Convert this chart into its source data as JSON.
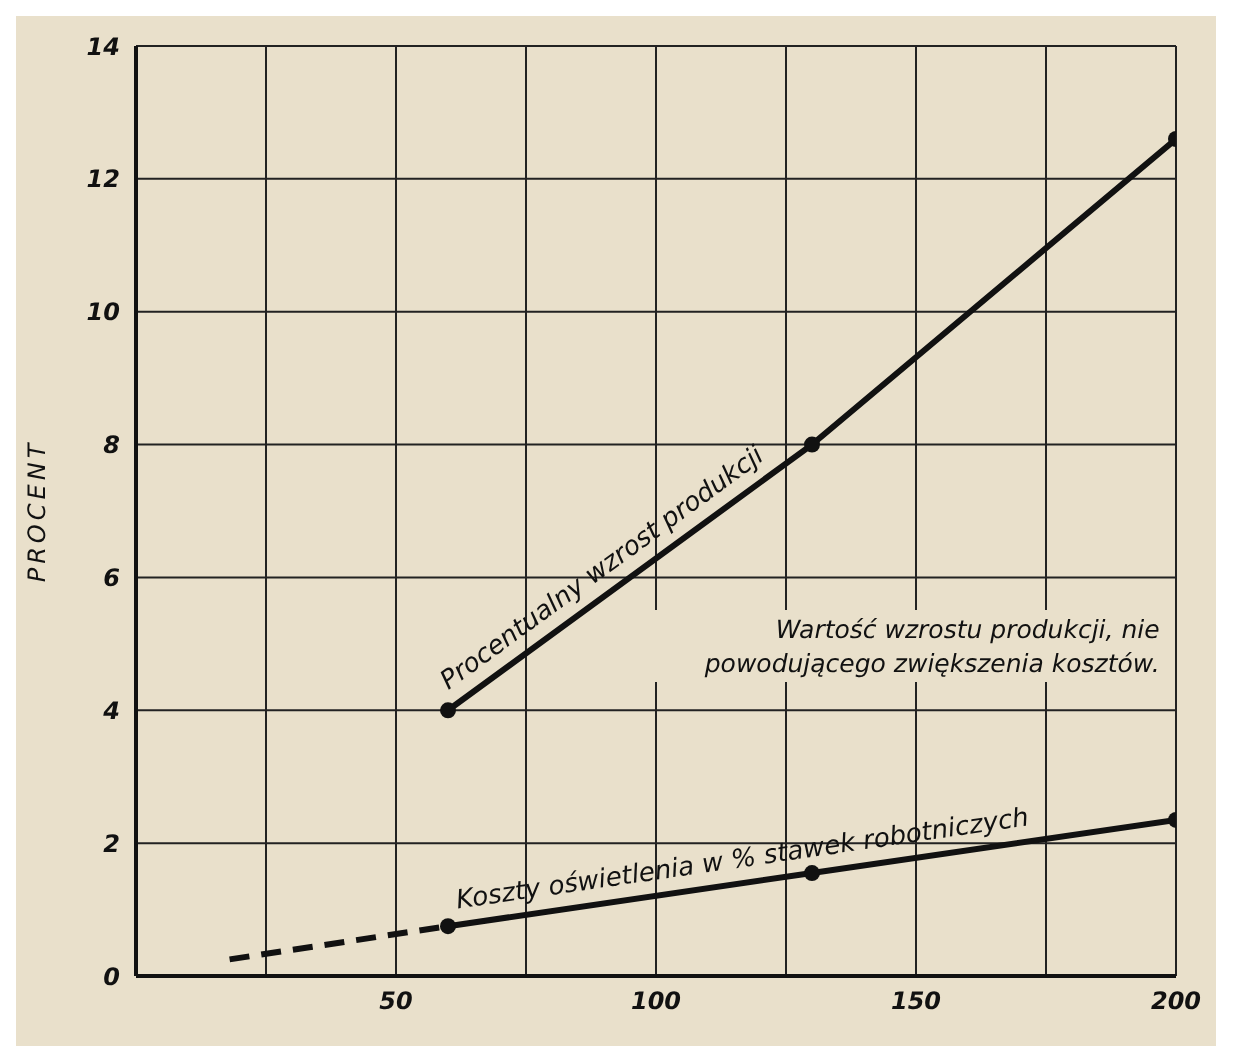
{
  "chart_data": {
    "type": "line",
    "ylabel": "PROCENT",
    "xlim": [
      0,
      200
    ],
    "xticks": [
      {
        "value": 25,
        "label": null
      },
      50,
      {
        "value": 75,
        "label": null
      },
      100,
      {
        "value": 125,
        "label": null
      },
      150,
      {
        "value": 175,
        "label": null
      },
      200
    ],
    "ylim": [
      0,
      14
    ],
    "yticks": [
      0,
      2,
      4,
      6,
      8,
      10,
      12,
      14
    ],
    "grid": true,
    "marker": "circle",
    "line_style": "solid",
    "annotations": [
      "Wartość wzrostu produkcji, nie powodującego zwiększenia kosztów."
    ],
    "series": [
      {
        "name": "Procentualny wzrost produkcji",
        "color": "#111111",
        "x": [
          60,
          130,
          200
        ],
        "values": [
          4,
          8,
          12.6
        ]
      },
      {
        "name": "Koszty oświetlenia w % stawek robotniczych",
        "color": "#111111",
        "x": [
          60,
          130,
          200
        ],
        "values": [
          0.75,
          1.55,
          2.35
        ]
      },
      {
        "color": "#111111",
        "x": [
          18,
          60
        ],
        "values": [
          0.25,
          0.75
        ],
        "line_style": "dashed",
        "marker": "none"
      }
    ]
  }
}
